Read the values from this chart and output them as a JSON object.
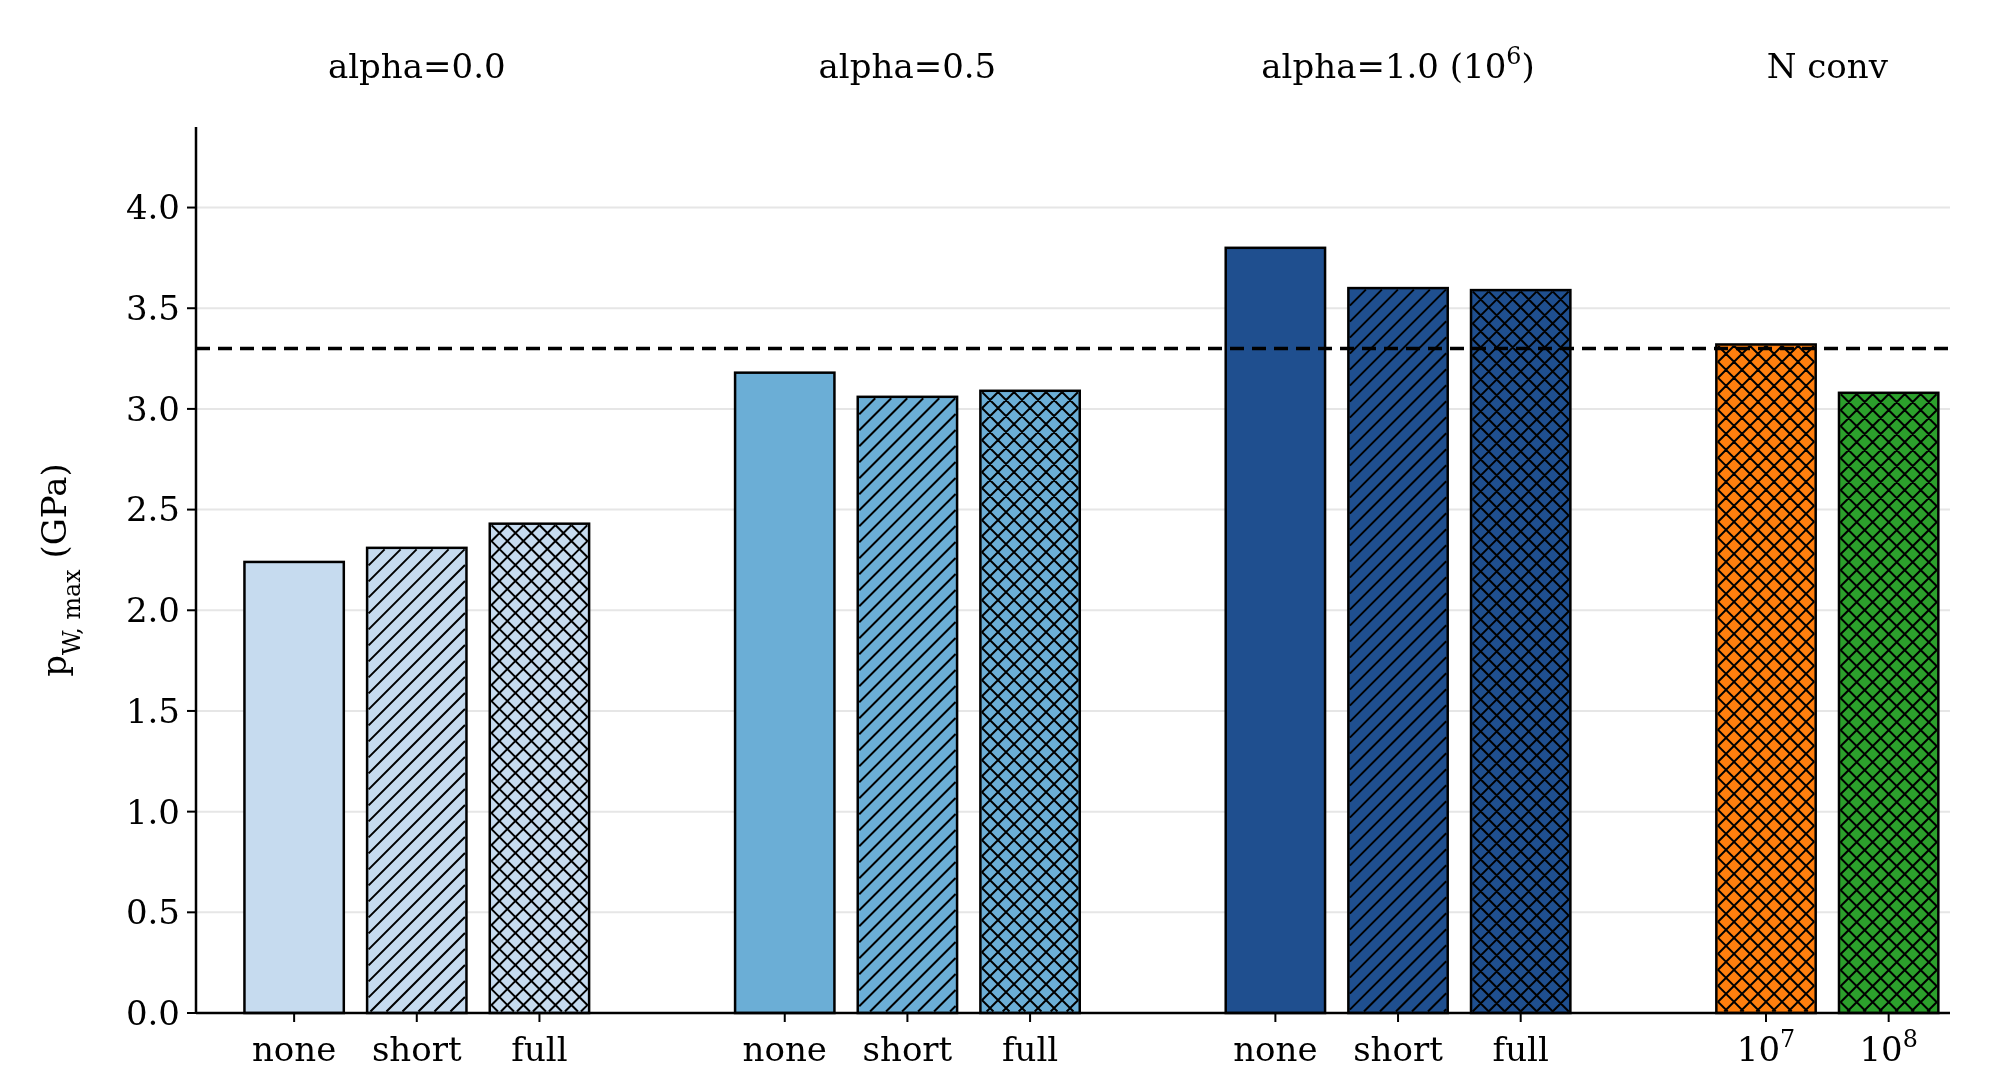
{
  "chart_data": {
    "type": "bar",
    "ylabel": "p$_{W, max}$ (GPa)",
    "categories": [
      "none",
      "short",
      "full",
      null,
      "none",
      "short",
      "full",
      null,
      "none",
      "short",
      "full",
      null,
      "10$^{7}$",
      "10$^{8}$"
    ],
    "series": [
      {
        "values": [
          2.24,
          null,
          null,
          null,
          3.18,
          null,
          null,
          null,
          3.8,
          null,
          null,
          null,
          null,
          null
        ],
        "colors": [
          "#c6dbef",
          null,
          null,
          null,
          "#6baed6",
          null,
          null,
          null,
          "#1f4f8f",
          null,
          null,
          null,
          null,
          null
        ]
      },
      {
        "values": [
          null,
          2.31,
          null,
          null,
          null,
          3.06,
          null,
          null,
          null,
          3.6,
          null,
          null,
          null,
          null
        ],
        "colors": [
          null,
          "#c6dbef",
          null,
          null,
          null,
          "#6baed6",
          null,
          null,
          null,
          "#1f4f8f",
          null,
          null,
          null,
          null
        ]
      },
      {
        "values": [
          null,
          null,
          2.43,
          null,
          null,
          null,
          3.09,
          null,
          null,
          null,
          3.59,
          null,
          3.32,
          3.08
        ],
        "colors": [
          null,
          null,
          "#c6dbef",
          null,
          null,
          null,
          "#6baed6",
          null,
          null,
          null,
          "#1f4f8f",
          null,
          "#ff7f0e",
          "#2ca02c"
        ]
      }
    ],
    "ylim": [
      0,
      4.4
    ],
    "yticks": [
      {
        "value": 0,
        "label": "0.0"
      },
      0.5,
      {
        "value": 1,
        "label": "1.0"
      },
      1.5,
      {
        "value": 2,
        "label": "2.0"
      },
      2.5,
      {
        "value": 3,
        "label": "3.0"
      },
      3.5,
      {
        "value": 4,
        "label": "4.0"
      }
    ],
    "grid": "y",
    "ref_lines": [
      {
        "axis": "y",
        "value": 3.3,
        "color": "#000000",
        "line_style": "dashed"
      }
    ],
    "annotations": [
      "alpha=0.0",
      "alpha=0.5",
      "alpha=1.0 (10$^{6}$)",
      "N conv"
    ]
  }
}
